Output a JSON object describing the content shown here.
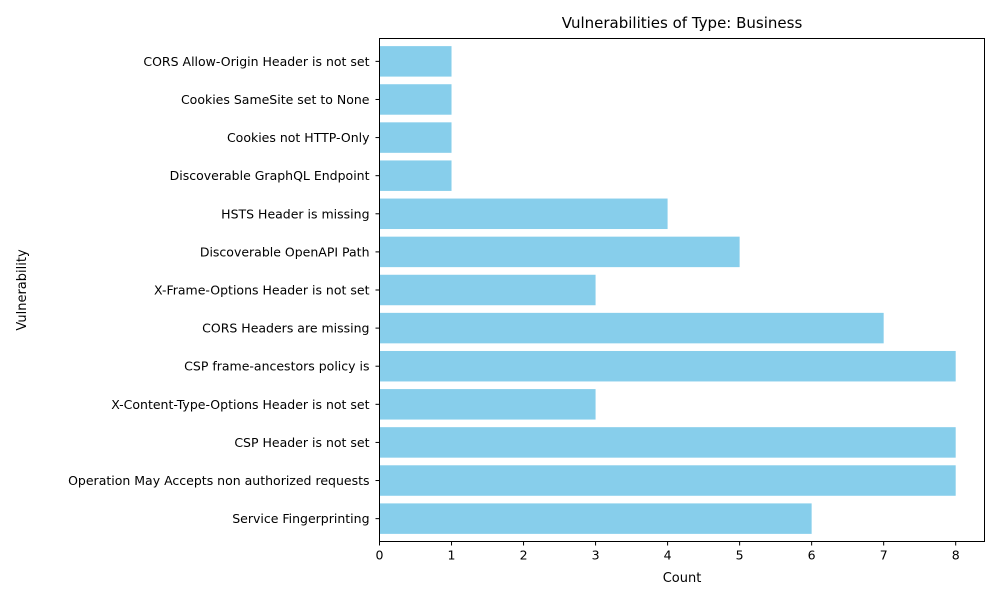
{
  "chart_data": {
    "type": "bar",
    "orientation": "horizontal",
    "title": "Vulnerabilities of Type: Business",
    "xlabel": "Count",
    "ylabel": "Vulnerability",
    "categories": [
      "Service Fingerprinting",
      "Operation May Accepts non authorized requests",
      "CSP Header is not set",
      "X-Content-Type-Options Header is not set",
      "CSP frame-ancestors policy is",
      "CORS Headers are missing",
      "X-Frame-Options Header is not set",
      "Discoverable OpenAPI Path",
      "HSTS Header is missing",
      "Discoverable GraphQL Endpoint",
      "Cookies not HTTP-Only",
      "Cookies SameSite set to None",
      "CORS Allow-Origin Header is not set"
    ],
    "values": [
      6,
      8,
      8,
      3,
      8,
      7,
      3,
      5,
      4,
      1,
      1,
      1,
      1
    ],
    "xlim": [
      0,
      8.4
    ],
    "xticks": [
      0,
      1,
      2,
      3,
      4,
      5,
      6,
      7,
      8
    ],
    "bar_color": "#87CEEB",
    "grid": false,
    "legend": "none"
  }
}
